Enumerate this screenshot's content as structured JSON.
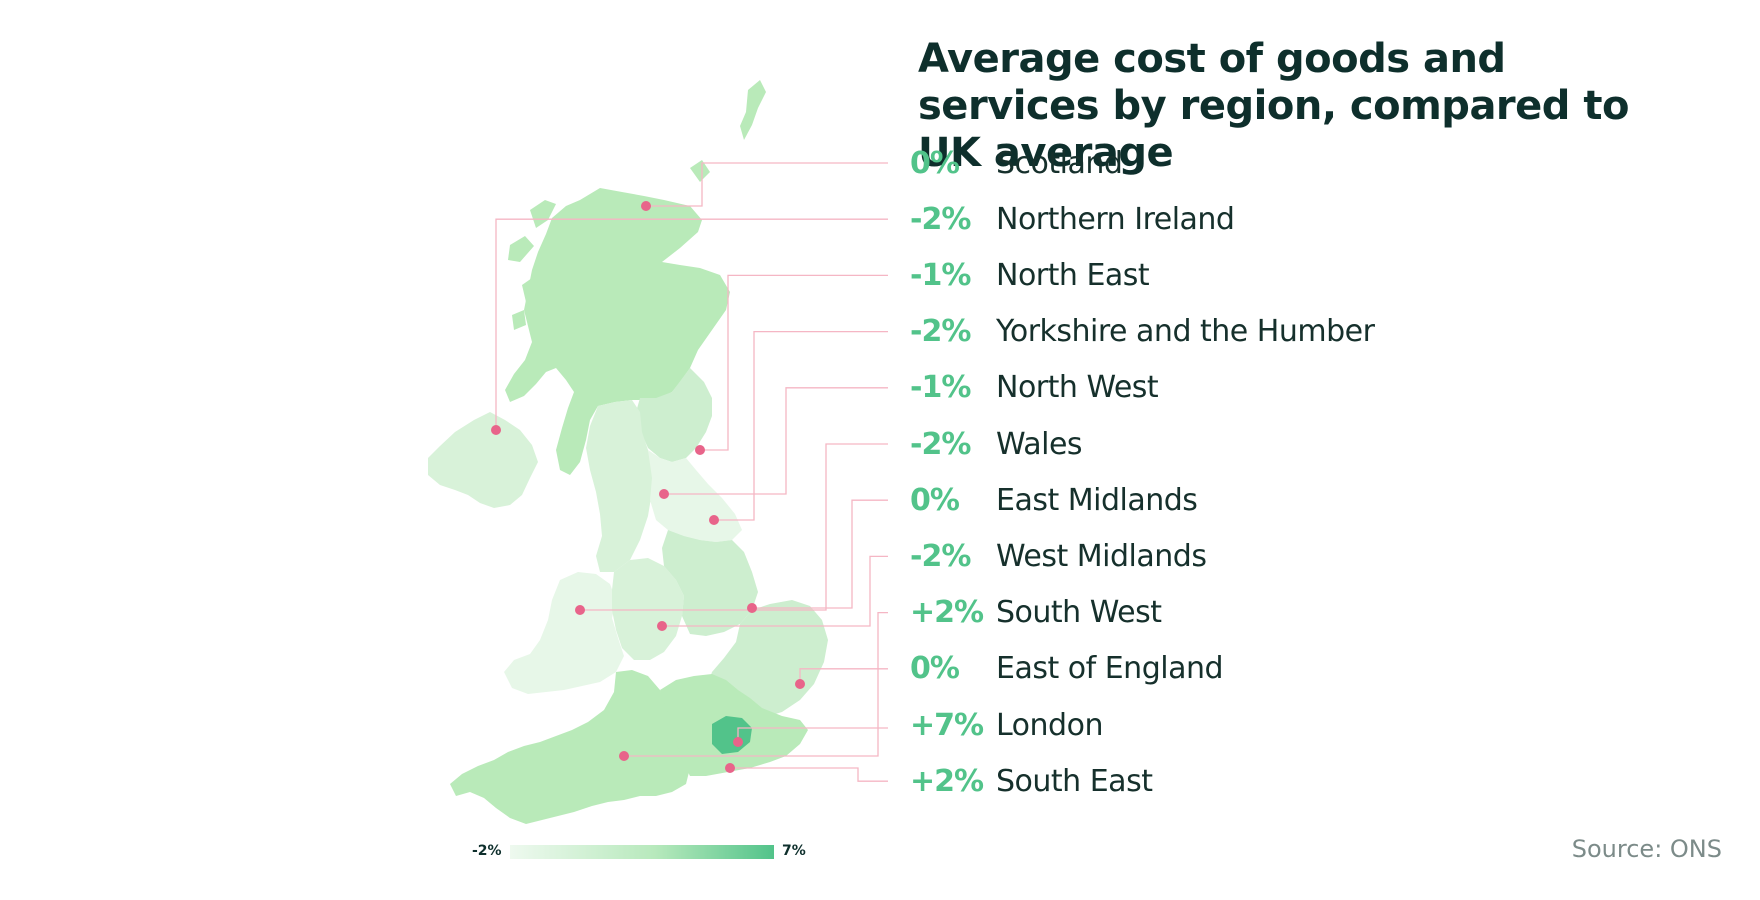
{
  "title": "Average cost of goods and services by region, compared to UK average",
  "regions": [
    {
      "value": "0%",
      "name": "Scotland"
    },
    {
      "value": "-2%",
      "name": "Northern Ireland"
    },
    {
      "value": "-1%",
      "name": "North East"
    },
    {
      "value": "-2%",
      "name": "Yorkshire and the Humber"
    },
    {
      "value": "-1%",
      "name": "North West"
    },
    {
      "value": "-2%",
      "name": "Wales"
    },
    {
      "value": "0%",
      "name": "East Midlands"
    },
    {
      "value": "-2%",
      "name": "West Midlands"
    },
    {
      "value": "+2%",
      "name": "South West"
    },
    {
      "value": "0%",
      "name": "East of England"
    },
    {
      "value": "+7%",
      "name": "London"
    },
    {
      "value": "+2%",
      "name": "South East"
    }
  ],
  "scale": {
    "min_label": "-2%",
    "max_label": "7%",
    "min_color": "#eef9ef",
    "max_color": "#52c38a"
  },
  "source": "Source: ONS",
  "colors": {
    "accent": "#52c38a",
    "leader_line": "#f5b6c4",
    "marker": "#e8648a",
    "title": "#0e2f2c"
  }
}
